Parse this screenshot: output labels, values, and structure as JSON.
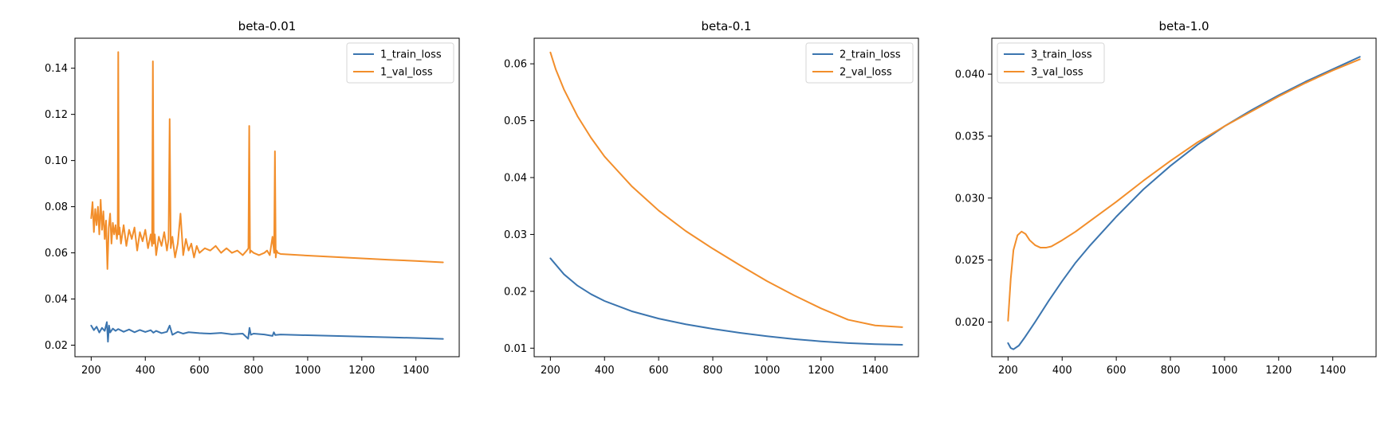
{
  "chart_data": [
    {
      "type": "line",
      "title": "beta-0.01",
      "xlabel": "",
      "ylabel": "",
      "xlim": [
        140,
        1560
      ],
      "ylim": [
        0.015,
        0.153
      ],
      "xticks": [
        200,
        400,
        600,
        800,
        1000,
        1200,
        1400
      ],
      "yticks": [
        0.02,
        0.04,
        0.06,
        0.08,
        0.1,
        0.12,
        0.14
      ],
      "ytick_labels": [
        "0.02",
        "0.04",
        "0.06",
        "0.08",
        "0.10",
        "0.12",
        "0.14"
      ],
      "legend_position": "upper right",
      "series": [
        {
          "name": "1_train_loss",
          "color": "#3b75af",
          "x": [
            200,
            210,
            220,
            230,
            240,
            250,
            258,
            262,
            266,
            270,
            280,
            290,
            300,
            320,
            340,
            360,
            380,
            400,
            420,
            430,
            440,
            460,
            480,
            490,
            500,
            520,
            540,
            560,
            600,
            640,
            680,
            720,
            760,
            780,
            785,
            790,
            800,
            840,
            870,
            875,
            880,
            900,
            1000,
            1100,
            1200,
            1300,
            1400,
            1500
          ],
          "y": [
            0.0285,
            0.0265,
            0.028,
            0.0255,
            0.0275,
            0.0262,
            0.03,
            0.0215,
            0.0285,
            0.0255,
            0.0272,
            0.0262,
            0.027,
            0.0258,
            0.0268,
            0.0256,
            0.0266,
            0.0257,
            0.0265,
            0.0254,
            0.0262,
            0.0252,
            0.0258,
            0.0285,
            0.0245,
            0.0258,
            0.025,
            0.0256,
            0.0252,
            0.025,
            0.0253,
            0.0247,
            0.025,
            0.0228,
            0.0275,
            0.0245,
            0.025,
            0.0246,
            0.024,
            0.0256,
            0.0244,
            0.0246,
            0.0243,
            0.024,
            0.0237,
            0.0234,
            0.0231,
            0.0227
          ]
        },
        {
          "name": "1_val_loss",
          "color": "#f28e2b",
          "x": [
            200,
            205,
            210,
            215,
            220,
            225,
            230,
            235,
            240,
            245,
            250,
            255,
            260,
            265,
            270,
            275,
            280,
            285,
            290,
            295,
            298,
            300,
            302,
            305,
            310,
            320,
            330,
            340,
            350,
            360,
            370,
            380,
            390,
            400,
            410,
            420,
            425,
            428,
            431,
            435,
            440,
            450,
            460,
            470,
            480,
            486,
            490,
            494,
            500,
            510,
            520,
            530,
            540,
            550,
            560,
            570,
            580,
            590,
            600,
            620,
            640,
            660,
            680,
            700,
            720,
            740,
            760,
            775,
            781,
            784,
            787,
            790,
            800,
            820,
            840,
            850,
            860,
            870,
            876,
            879,
            882,
            885,
            890,
            900,
            1000,
            1100,
            1200,
            1300,
            1400,
            1500
          ],
          "y": [
            0.075,
            0.082,
            0.069,
            0.079,
            0.072,
            0.08,
            0.068,
            0.083,
            0.07,
            0.078,
            0.066,
            0.074,
            0.053,
            0.071,
            0.077,
            0.064,
            0.073,
            0.068,
            0.072,
            0.066,
            0.07,
            0.147,
            0.068,
            0.071,
            0.064,
            0.072,
            0.063,
            0.07,
            0.066,
            0.071,
            0.061,
            0.069,
            0.065,
            0.07,
            0.062,
            0.068,
            0.063,
            0.143,
            0.064,
            0.068,
            0.059,
            0.067,
            0.063,
            0.069,
            0.061,
            0.066,
            0.118,
            0.062,
            0.067,
            0.058,
            0.064,
            0.077,
            0.059,
            0.066,
            0.061,
            0.064,
            0.058,
            0.063,
            0.06,
            0.062,
            0.061,
            0.063,
            0.06,
            0.062,
            0.06,
            0.061,
            0.059,
            0.061,
            0.062,
            0.115,
            0.06,
            0.061,
            0.06,
            0.059,
            0.06,
            0.061,
            0.059,
            0.067,
            0.06,
            0.104,
            0.058,
            0.061,
            0.06,
            0.0595,
            0.0588,
            0.0582,
            0.0576,
            0.057,
            0.0565,
            0.0559
          ]
        }
      ]
    },
    {
      "type": "line",
      "title": "beta-0.1",
      "xlabel": "",
      "ylabel": "",
      "xlim": [
        140,
        1560
      ],
      "ylim": [
        0.0085,
        0.0645
      ],
      "xticks": [
        200,
        400,
        600,
        800,
        1000,
        1200,
        1400
      ],
      "yticks": [
        0.01,
        0.02,
        0.03,
        0.04,
        0.05,
        0.06
      ],
      "ytick_labels": [
        "0.01",
        "0.02",
        "0.03",
        "0.04",
        "0.05",
        "0.06"
      ],
      "legend_position": "upper right",
      "series": [
        {
          "name": "2_train_loss",
          "color": "#3b75af",
          "x": [
            200,
            250,
            300,
            350,
            400,
            500,
            600,
            700,
            800,
            900,
            1000,
            1100,
            1200,
            1300,
            1400,
            1500
          ],
          "y": [
            0.0258,
            0.023,
            0.021,
            0.0195,
            0.0183,
            0.0165,
            0.0152,
            0.0142,
            0.0134,
            0.0127,
            0.0121,
            0.0116,
            0.0112,
            0.0109,
            0.0107,
            0.0106
          ]
        },
        {
          "name": "2_val_loss",
          "color": "#f28e2b",
          "x": [
            200,
            220,
            250,
            300,
            350,
            400,
            500,
            600,
            700,
            800,
            900,
            1000,
            1100,
            1200,
            1300,
            1400,
            1500
          ],
          "y": [
            0.062,
            0.059,
            0.0555,
            0.0508,
            0.047,
            0.0437,
            0.0385,
            0.0342,
            0.0306,
            0.0275,
            0.0246,
            0.0218,
            0.0193,
            0.017,
            0.015,
            0.014,
            0.0137
          ]
        }
      ]
    },
    {
      "type": "line",
      "title": "beta-1.0",
      "xlabel": "",
      "ylabel": "",
      "xlim": [
        140,
        1560
      ],
      "ylim": [
        0.0172,
        0.0429
      ],
      "xticks": [
        200,
        400,
        600,
        800,
        1000,
        1200,
        1400
      ],
      "yticks": [
        0.02,
        0.025,
        0.03,
        0.035,
        0.04
      ],
      "ytick_labels": [
        "0.020",
        "0.025",
        "0.030",
        "0.035",
        "0.040"
      ],
      "legend_position": "upper left",
      "series": [
        {
          "name": "3_train_loss",
          "color": "#3b75af",
          "x": [
            200,
            210,
            220,
            240,
            260,
            300,
            350,
            400,
            450,
            500,
            600,
            700,
            800,
            900,
            1000,
            1100,
            1200,
            1300,
            1400,
            1500
          ],
          "y": [
            0.0183,
            0.0179,
            0.0178,
            0.0181,
            0.0187,
            0.02,
            0.0217,
            0.0233,
            0.0248,
            0.0261,
            0.0285,
            0.0307,
            0.0326,
            0.0343,
            0.0358,
            0.0371,
            0.0383,
            0.0394,
            0.0404,
            0.0414
          ]
        },
        {
          "name": "3_val_loss",
          "color": "#f28e2b",
          "x": [
            200,
            210,
            220,
            235,
            250,
            265,
            280,
            300,
            320,
            340,
            360,
            400,
            450,
            500,
            600,
            700,
            800,
            900,
            1000,
            1100,
            1200,
            1300,
            1400,
            1500
          ],
          "y": [
            0.0201,
            0.0235,
            0.0258,
            0.027,
            0.0273,
            0.0271,
            0.0266,
            0.0262,
            0.026,
            0.026,
            0.0261,
            0.0266,
            0.0273,
            0.0281,
            0.0297,
            0.0314,
            0.033,
            0.0345,
            0.0358,
            0.037,
            0.0382,
            0.0393,
            0.0403,
            0.0412
          ]
        }
      ]
    }
  ]
}
